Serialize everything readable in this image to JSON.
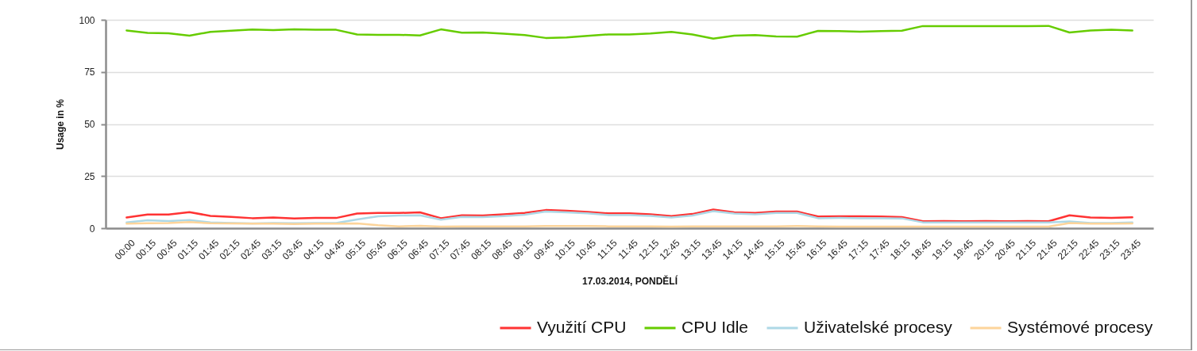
{
  "chart_data": {
    "type": "line",
    "xlabel": "17.03.2014, PONDĚLÍ",
    "ylabel": "Usage in %",
    "categories": [
      "00:00",
      "00:15",
      "00:45",
      "01:15",
      "01:45",
      "02:15",
      "02:45",
      "03:15",
      "03:45",
      "04:15",
      "04:45",
      "05:15",
      "05:45",
      "06:15",
      "06:45",
      "07:15",
      "07:45",
      "08:15",
      "08:45",
      "09:15",
      "09:45",
      "10:15",
      "10:45",
      "11:15",
      "11:45",
      "12:15",
      "12:45",
      "13:15",
      "13:45",
      "14:15",
      "14:45",
      "15:15",
      "15:45",
      "16:15",
      "16:45",
      "17:15",
      "17:45",
      "18:15",
      "18:45",
      "19:15",
      "19:45",
      "20:15",
      "20:45",
      "21:15",
      "21:45",
      "22:15",
      "22:45",
      "23:15",
      "23:45"
    ],
    "series": [
      {
        "name": "Využití CPU",
        "color": "#ff3333",
        "values": [
          5.1,
          6.6,
          6.6,
          7.7,
          5.9,
          5.4,
          4.8,
          5.1,
          4.7,
          4.9,
          4.9,
          7.0,
          7.3,
          7.3,
          7.6,
          4.8,
          6.2,
          6.1,
          6.7,
          7.3,
          8.7,
          8.4,
          7.8,
          7.1,
          7.1,
          6.7,
          5.8,
          6.8,
          8.9,
          7.6,
          7.3,
          8.0,
          8.0,
          5.6,
          5.7,
          5.7,
          5.6,
          5.3,
          3.3,
          3.4,
          3.3,
          3.4,
          3.3,
          3.4,
          3.3,
          6.2,
          5.1,
          4.9,
          5.2
        ]
      },
      {
        "name": "CPU Idle",
        "color": "#66cc00",
        "values": [
          94.9,
          93.7,
          93.5,
          92.4,
          94.2,
          94.8,
          95.3,
          95.1,
          95.4,
          95.2,
          95.2,
          93.0,
          92.8,
          92.8,
          92.5,
          95.4,
          93.8,
          93.9,
          93.3,
          92.7,
          91.3,
          91.5,
          92.3,
          93.0,
          93.0,
          93.4,
          94.2,
          93.0,
          91.0,
          92.4,
          92.7,
          92.0,
          91.9,
          94.7,
          94.6,
          94.3,
          94.6,
          94.8,
          97.0,
          97.0,
          97.0,
          97.0,
          97.0,
          97.0,
          97.1,
          93.9,
          94.9,
          95.2,
          94.9
        ]
      },
      {
        "name": "Uživatelské procesy",
        "color": "#add8e6",
        "values": [
          2.8,
          3.8,
          3.4,
          3.9,
          2.8,
          2.5,
          2.3,
          2.5,
          2.4,
          2.5,
          2.5,
          4.2,
          5.7,
          6.1,
          6.2,
          4.1,
          5.4,
          5.3,
          5.8,
          6.5,
          8.0,
          7.6,
          7.1,
          6.3,
          6.3,
          5.9,
          5.1,
          6.1,
          8.2,
          7.0,
          6.7,
          7.3,
          7.3,
          4.8,
          4.9,
          4.8,
          4.8,
          4.7,
          2.8,
          2.8,
          2.8,
          2.8,
          2.8,
          2.8,
          2.8,
          3.2,
          2.5,
          2.5,
          2.8
        ]
      },
      {
        "name": "Systémové procesy",
        "color": "#fdd49a",
        "values": [
          2.2,
          2.4,
          2.5,
          2.9,
          2.4,
          2.3,
          2.2,
          2.2,
          2.0,
          2.2,
          2.2,
          2.3,
          1.4,
          0.9,
          1.1,
          0.8,
          0.9,
          0.9,
          0.9,
          0.9,
          1.0,
          1.0,
          1.0,
          0.9,
          0.9,
          0.9,
          0.8,
          0.9,
          0.9,
          0.9,
          0.9,
          0.9,
          1.0,
          0.9,
          0.8,
          0.8,
          0.8,
          0.8,
          0.8,
          0.8,
          0.8,
          0.8,
          0.8,
          0.8,
          0.8,
          2.5,
          2.2,
          2.2,
          2.3
        ]
      }
    ],
    "ylim": [
      0,
      100
    ],
    "yticks": [
      0,
      25,
      50,
      75,
      100
    ],
    "grid": "y",
    "legend": "bottom right"
  }
}
